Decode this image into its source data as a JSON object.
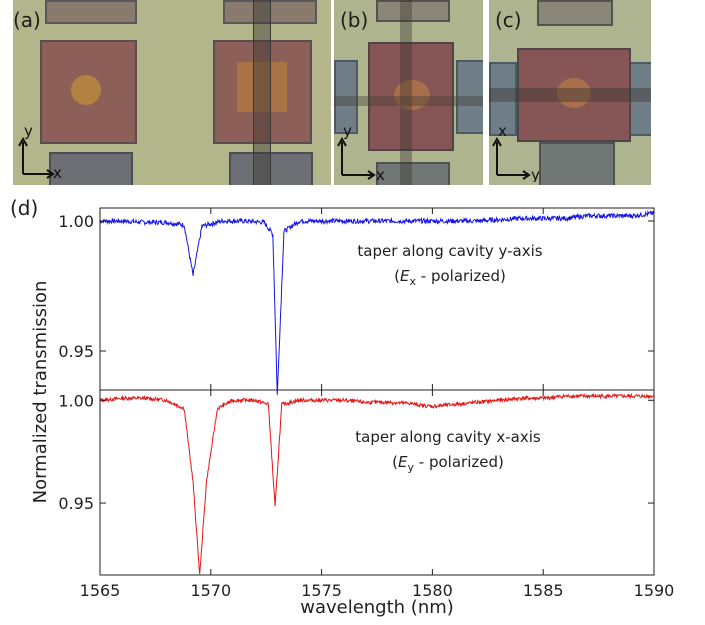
{
  "panels": {
    "a": {
      "label": "(a)",
      "axis_vertical": "y",
      "axis_horizontal": "x"
    },
    "b": {
      "label": "(b)",
      "axis_vertical": "y",
      "axis_horizontal": "x"
    },
    "c": {
      "label": "(c)",
      "axis_vertical": "x",
      "axis_horizontal": "y"
    },
    "d": {
      "label": "(d)"
    }
  },
  "chart_data": [
    {
      "type": "line",
      "xlabel": "wavelength (nm)",
      "ylabel": "Normalized transmission",
      "xlim": [
        1565,
        1590
      ],
      "ylim": [
        0.935,
        1.005
      ],
      "xticks": [
        "1565",
        "1570",
        "1575",
        "1580",
        "1585",
        "1590"
      ],
      "yticks": [
        "1.00",
        "0.95"
      ],
      "annotation_line1": "taper along cavity y-axis",
      "annotation_line2_prefix": "(",
      "annotation_symbol": "E",
      "annotation_subscript": "x",
      "annotation_line2_suffix": " - polarized)",
      "color": "#1515e6",
      "x": [
        1565.0,
        1566.0,
        1567.0,
        1568.0,
        1568.8,
        1569.2,
        1569.6,
        1570.5,
        1571.5,
        1572.4,
        1572.8,
        1573.0,
        1573.3,
        1574.0,
        1575.0,
        1576.0,
        1577.0,
        1578.0,
        1579.0,
        1580.0,
        1581.0,
        1582.0,
        1583.0,
        1584.0,
        1585.0,
        1586.0,
        1587.0,
        1588.0,
        1589.0,
        1590.0
      ],
      "y": [
        1.0,
        1.0,
        0.9995,
        0.9995,
        0.9985,
        0.979,
        0.998,
        1.0,
        1.0,
        0.9995,
        0.995,
        0.933,
        0.996,
        1.0,
        1.0,
        1.0,
        1.0,
        1.0,
        1.0,
        1.0,
        1.0,
        1.0,
        1.0005,
        1.001,
        1.001,
        1.001,
        1.002,
        1.002,
        1.002,
        1.003
      ]
    },
    {
      "type": "line",
      "xlim": [
        1565,
        1590
      ],
      "ylim": [
        0.915,
        1.005
      ],
      "yticks": [
        "1.00",
        "0.95"
      ],
      "annotation_line1": "taper along cavity x-axis",
      "annotation_line2_prefix": "(",
      "annotation_symbol": "E",
      "annotation_subscript": "y",
      "annotation_line2_suffix": " - polarized)",
      "color": "#e61515",
      "x": [
        1565.0,
        1566.0,
        1567.0,
        1568.0,
        1568.8,
        1569.2,
        1569.5,
        1569.8,
        1570.3,
        1571.0,
        1572.0,
        1572.6,
        1572.9,
        1573.2,
        1574.0,
        1575.0,
        1576.0,
        1577.0,
        1578.0,
        1579.0,
        1579.5,
        1580.0,
        1580.5,
        1581.0,
        1582.0,
        1583.0,
        1584.0,
        1585.0,
        1586.0,
        1587.0,
        1588.0,
        1589.0,
        1590.0
      ],
      "y": [
        1.0,
        1.001,
        1.001,
        1.0,
        0.996,
        0.96,
        0.915,
        0.96,
        0.996,
        1.0,
        1.0,
        0.998,
        0.948,
        0.998,
        1.0,
        1.0,
        1.0,
        0.999,
        0.999,
        0.9985,
        0.9975,
        0.997,
        0.9975,
        0.998,
        0.999,
        1.0,
        1.001,
        1.001,
        1.002,
        1.002,
        1.002,
        1.002,
        1.002
      ]
    }
  ]
}
